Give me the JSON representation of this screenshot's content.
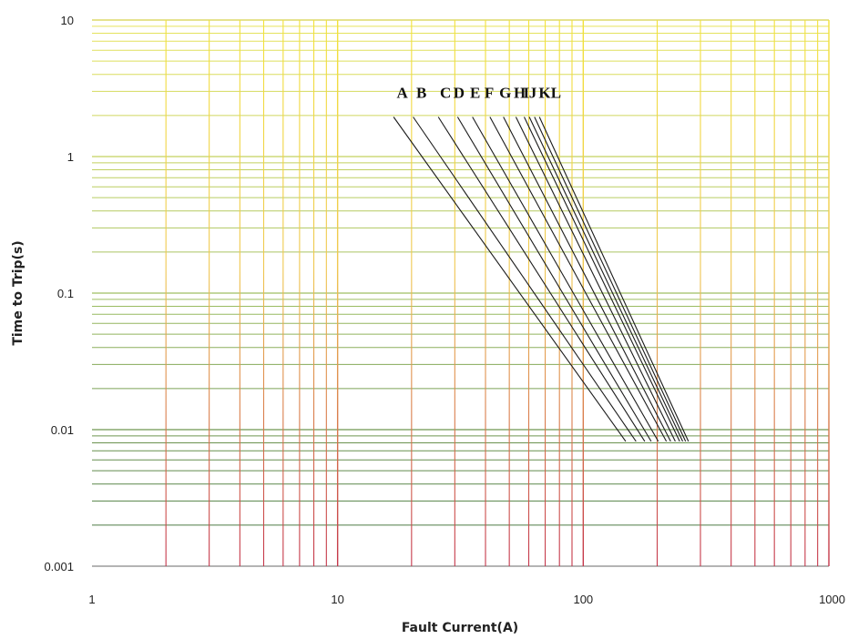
{
  "chart_data": {
    "type": "line",
    "xlabel": "Fault Current(A)",
    "ylabel": "Time to Trip(s)",
    "x_scale": "log",
    "y_scale": "log",
    "xlim": [
      1,
      1000
    ],
    "ylim": [
      0.001,
      10
    ],
    "grid": true,
    "x_ticks": [
      {
        "value": 1,
        "label": "1"
      },
      {
        "value": 10,
        "label": "10"
      },
      {
        "value": 100,
        "label": "100"
      },
      {
        "value": 1000,
        "label": "1000"
      }
    ],
    "y_ticks": [
      {
        "value": 10,
        "label": "10"
      },
      {
        "value": 1,
        "label": "1"
      },
      {
        "value": 0.1,
        "label": "0.1"
      },
      {
        "value": 0.01,
        "label": "0.01"
      },
      {
        "value": 0.001,
        "label": "0.001"
      }
    ],
    "colors": {
      "vertical_grid_top": "#f2e23a",
      "vertical_grid_bottom": "#c4344a",
      "horizontal_grid_top": "#e8e45c",
      "horizontal_grid_bottom": "#3f6f3f",
      "curve": "#1a1a1a"
    },
    "series": [
      {
        "name": "A",
        "x": [
          16.9,
          149
        ],
        "y": [
          1.95,
          0.0082
        ]
      },
      {
        "name": "B",
        "x": [
          20.3,
          164
        ],
        "y": [
          1.95,
          0.0082
        ]
      },
      {
        "name": "C",
        "x": [
          25.7,
          178
        ],
        "y": [
          1.95,
          0.0082
        ]
      },
      {
        "name": "D",
        "x": [
          30.8,
          189
        ],
        "y": [
          1.95,
          0.0082
        ]
      },
      {
        "name": "E",
        "x": [
          35.4,
          202
        ],
        "y": [
          1.95,
          0.0082
        ]
      },
      {
        "name": "F",
        "x": [
          41.7,
          218
        ],
        "y": [
          1.95,
          0.0082
        ]
      },
      {
        "name": "G",
        "x": [
          47.3,
          227
        ],
        "y": [
          1.95,
          0.0082
        ]
      },
      {
        "name": "H",
        "x": [
          53.2,
          237
        ],
        "y": [
          1.95,
          0.0082
        ]
      },
      {
        "name": "I",
        "x": [
          57.5,
          247
        ],
        "y": [
          1.95,
          0.0082
        ]
      },
      {
        "name": "J",
        "x": [
          60.3,
          254
        ],
        "y": [
          1.95,
          0.0082
        ]
      },
      {
        "name": "K",
        "x": [
          63.3,
          261
        ],
        "y": [
          1.95,
          0.0082
        ]
      },
      {
        "name": "L",
        "x": [
          66.3,
          268
        ],
        "y": [
          1.95,
          0.0082
        ]
      }
    ],
    "curve_labels": [
      {
        "text": "A",
        "x": 17.4,
        "y": 2.7
      },
      {
        "text": "B",
        "x": 20.9,
        "y": 2.7
      },
      {
        "text": "C",
        "x": 26.1,
        "y": 2.7
      },
      {
        "text": "D",
        "x": 29.6,
        "y": 2.7
      },
      {
        "text": "E",
        "x": 34.6,
        "y": 2.7
      },
      {
        "text": "F",
        "x": 39.6,
        "y": 2.7
      },
      {
        "text": "G",
        "x": 45.5,
        "y": 2.7
      },
      {
        "text": "H",
        "x": 52.1,
        "y": 2.7
      },
      {
        "text": "I",
        "x": 57.0,
        "y": 2.7
      },
      {
        "text": "J",
        "x": 60.1,
        "y": 2.7
      },
      {
        "text": "K",
        "x": 65.8,
        "y": 2.7
      },
      {
        "text": "L",
        "x": 73.8,
        "y": 2.7
      }
    ]
  }
}
